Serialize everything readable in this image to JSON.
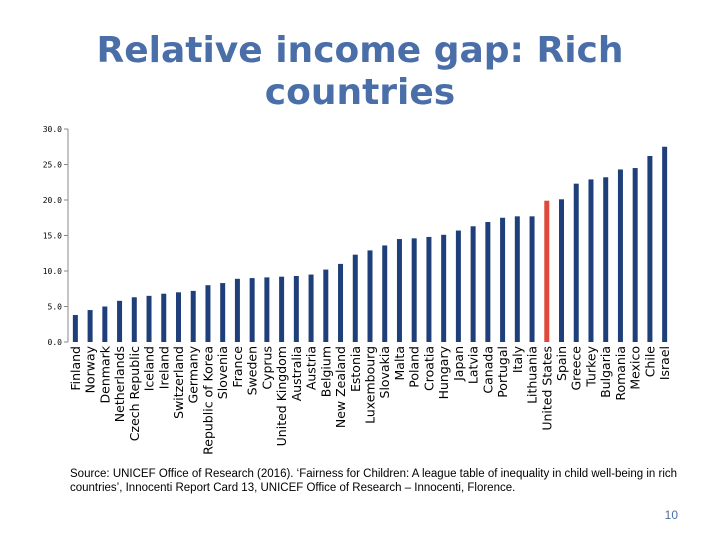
{
  "title": "Relative income gap: Rich countries",
  "source": "Source: UNICEF Office of Research (2016). ‘Fairness for Children: A league table of inequality in child well-being in rich countries’, Innocenti Report Card 13, UNICEF Office of Research – Innocenti, Florence.",
  "page_number": "10",
  "chart_data": {
    "type": "bar",
    "ylim": [
      0,
      30
    ],
    "yticks": [
      0,
      5,
      10,
      15,
      20,
      25,
      30
    ],
    "ytick_labels": [
      "0.0",
      "5.0",
      "10.0",
      "15.0",
      "20.0",
      "25.0",
      "30.0"
    ],
    "grid": false,
    "colors": {
      "default": "#1f3f7a",
      "highlight": "#e0483c"
    },
    "highlight": "United States",
    "categories": [
      "Finland",
      "Norway",
      "Denmark",
      "Netherlands",
      "Czech Republic",
      "Iceland",
      "Ireland",
      "Switzerland",
      "Germany",
      "Republic of Korea",
      "Slovenia",
      "France",
      "Sweden",
      "Cyprus",
      "United Kingdom",
      "Australia",
      "Austria",
      "Belgium",
      "New Zealand",
      "Estonia",
      "Luxembourg",
      "Slovakia",
      "Malta",
      "Poland",
      "Croatia",
      "Hungary",
      "Japan",
      "Latvia",
      "Canada",
      "Portugal",
      "Italy",
      "Lithuania",
      "United States",
      "Spain",
      "Greece",
      "Turkey",
      "Bulgaria",
      "Romania",
      "Mexico",
      "Chile",
      "Israel"
    ],
    "values": [
      3.8,
      4.5,
      5.0,
      5.8,
      6.3,
      6.5,
      6.8,
      7.0,
      7.2,
      8.0,
      8.3,
      8.9,
      9.0,
      9.1,
      9.2,
      9.3,
      9.5,
      10.2,
      11.0,
      12.3,
      12.9,
      13.6,
      14.5,
      14.6,
      14.8,
      15.1,
      15.7,
      16.3,
      16.9,
      17.5,
      17.7,
      17.7,
      19.9,
      20.1,
      22.3,
      22.9,
      23.2,
      24.3,
      24.5,
      26.2,
      27.5
    ]
  }
}
